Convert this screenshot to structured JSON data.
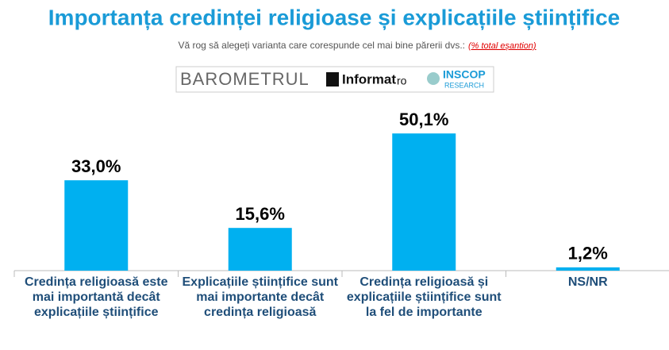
{
  "chart_data": {
    "type": "bar",
    "title": "Importanța credinței religioase și explicațiile științifice",
    "subtitle": "Vă rog să alegeți varianta care corespunde cel mai bine părerii dvs.:",
    "note": "(% total eșantion)",
    "categories": [
      "Credința religioasă este mai importantă decât explicațiile științifice",
      "Explicațiile științifice sunt mai importante decât credința religioasă",
      "Credința religioasă și explicațiile științifice sunt la fel de importante",
      "NS/NR"
    ],
    "values": [
      33.0,
      15.6,
      50.1,
      1.2
    ],
    "value_labels": [
      "33,0%",
      "15,6%",
      "50,1%",
      "1,2%"
    ],
    "color": "#00b0f0"
  },
  "logo": {
    "barometer": "BAROMETRUL",
    "informat": "Informat",
    "ro": "ro",
    "inscop": "INSCOP",
    "research": "RESEARCH"
  }
}
